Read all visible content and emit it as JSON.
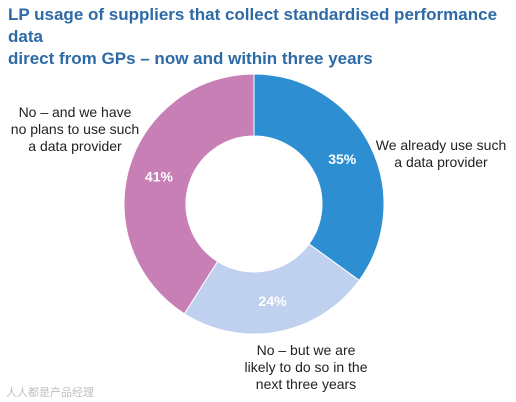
{
  "title": "LP usage of suppliers that collect standardised performance data\ndirect from GPs – now and within three years",
  "chart_data": {
    "type": "pie",
    "donut": true,
    "title": "LP usage of suppliers that collect standardised performance data direct from GPs – now and within three years",
    "categories": [
      "We already use such\na data provider",
      "No – but we are\nlikely to do so in the\nnext three years",
      "No – and we have\nno plans to use such\na data provider"
    ],
    "values": [
      35,
      24,
      41
    ],
    "value_labels": [
      "35%",
      "24%",
      "41%"
    ],
    "colors": [
      "#2d8ed1",
      "#bfd1ee",
      "#c77fb6"
    ],
    "legend": "none"
  },
  "watermark": "人人都是产品经理"
}
